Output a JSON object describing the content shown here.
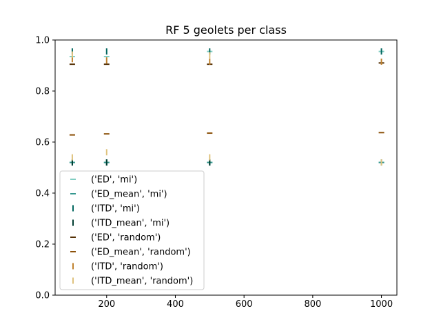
{
  "chart_data": {
    "type": "scatter",
    "title": "RF 5 geolets per class",
    "xlabel": "",
    "ylabel": "",
    "xlim": [
      50,
      1045
    ],
    "ylim": [
      0,
      1.0
    ],
    "xticks": [
      200,
      400,
      600,
      800,
      1000
    ],
    "yticks": [
      0.0,
      0.2,
      0.4,
      0.6,
      0.8,
      1.0
    ],
    "grid": false,
    "legend_position": "lower-left",
    "series": [
      {
        "name": "('ED', 'mi')",
        "marker": "hline",
        "color": "#80cdc1",
        "points": [
          [
            100,
            0.935
          ],
          [
            200,
            0.935
          ],
          [
            500,
            0.955
          ],
          [
            1000,
            0.955
          ],
          [
            100,
            0.52
          ],
          [
            200,
            0.52
          ],
          [
            500,
            0.52
          ],
          [
            1000,
            0.52
          ]
        ]
      },
      {
        "name": "('ED_mean', 'mi')",
        "marker": "hline",
        "color": "#35978f",
        "points": [
          [
            100,
            0.52
          ],
          [
            200,
            0.52
          ],
          [
            500,
            0.52
          ],
          [
            1000,
            0.52
          ]
        ]
      },
      {
        "name": "('ITD', 'mi')",
        "marker": "vline",
        "color": "#01665e",
        "points": [
          [
            100,
            0.955
          ],
          [
            200,
            0.955
          ],
          [
            500,
            0.955
          ],
          [
            1000,
            0.955
          ],
          [
            100,
            0.52
          ],
          [
            200,
            0.52
          ],
          [
            500,
            0.52
          ],
          [
            1000,
            0.52
          ]
        ]
      },
      {
        "name": "('ITD_mean', 'mi')",
        "marker": "vline",
        "color": "#003c30",
        "points": [
          [
            100,
            0.52
          ],
          [
            200,
            0.52
          ],
          [
            500,
            0.52
          ]
        ]
      },
      {
        "name": "('ED', 'random')",
        "marker": "hline",
        "color": "#543005",
        "points": [
          [
            100,
            0.905
          ],
          [
            200,
            0.905
          ],
          [
            500,
            0.905
          ],
          [
            1000,
            0.91
          ]
        ]
      },
      {
        "name": "('ED_mean', 'random')",
        "marker": "hline",
        "color": "#8c510a",
        "points": [
          [
            100,
            0.628
          ],
          [
            200,
            0.632
          ],
          [
            500,
            0.635
          ],
          [
            1000,
            0.637
          ]
        ]
      },
      {
        "name": "('ITD', 'random')",
        "marker": "vline",
        "color": "#bf812d",
        "points": [
          [
            100,
            0.925
          ],
          [
            200,
            0.92
          ],
          [
            500,
            0.915
          ],
          [
            1000,
            0.915
          ]
        ]
      },
      {
        "name": "('ITD_mean', 'random')",
        "marker": "vline",
        "color": "#dfc27d",
        "points": [
          [
            100,
            0.943
          ],
          [
            100,
            0.54
          ],
          [
            200,
            0.56
          ],
          [
            500,
            0.94
          ],
          [
            500,
            0.54
          ],
          [
            1000,
            0.52
          ]
        ]
      }
    ]
  }
}
